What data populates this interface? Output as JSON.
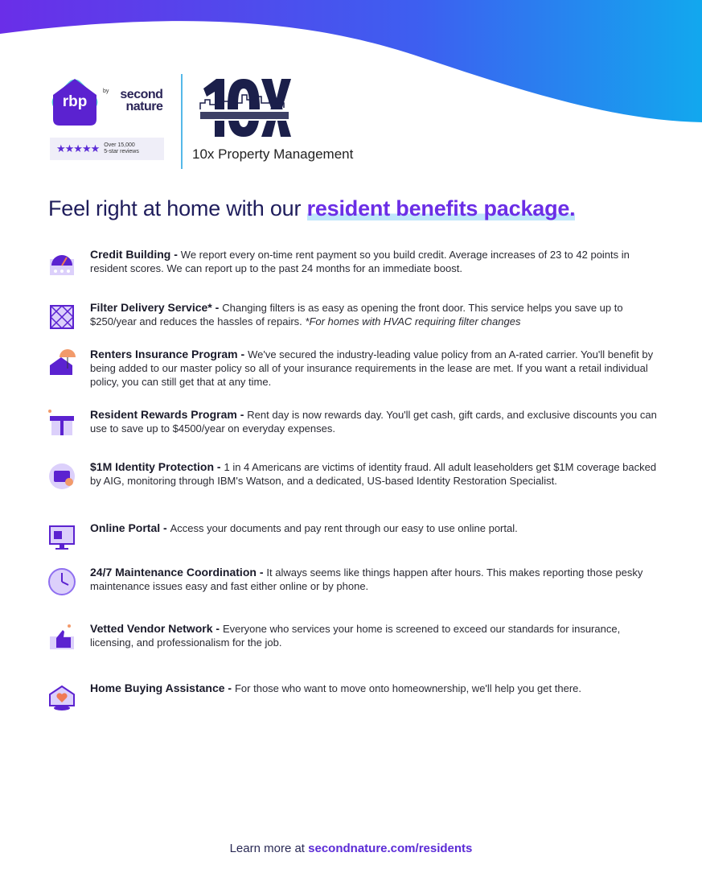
{
  "header": {
    "rbp_logo": "rbp",
    "by": "by",
    "second_nature": "second nature",
    "stars": "★★★★★",
    "reviews_line1": "Over 15,000",
    "reviews_line2": "5-star reviews",
    "partner_logo_text": "10X PROPERTY MANAGEMENT",
    "partner_name": "10x Property Management"
  },
  "headline": {
    "prefix": "Feel right at home with our ",
    "highlight": "resident benefits package."
  },
  "colors": {
    "accent": "#6b2ee6",
    "navy": "#1f1d5c",
    "wave_start": "#6a2ee8",
    "wave_end": "#12a8ee"
  },
  "benefits": [
    {
      "icon": "credit-gauge-icon",
      "title": "Credit Building",
      "desc": "We report every on-time rent payment so you build credit. Average increases of 23 to 42 points in resident scores. We can report up to the past 24 months for an immediate boost."
    },
    {
      "icon": "air-filter-icon",
      "title": "Filter Delivery Service*",
      "desc": "Changing filters is as easy as opening the front door. This service helps you save up to $250/year and reduces the hassles of repairs. ",
      "note": "*For homes with HVAC requiring filter changes"
    },
    {
      "icon": "umbrella-house-icon",
      "title": "Renters Insurance Program",
      "desc": "We've secured the industry-leading value policy from an A-rated carrier. You'll benefit by being added to our master policy so all of your insurance requirements in the lease are met. If you want a retail individual policy, you can still get that at any time."
    },
    {
      "icon": "gift-icon",
      "title": "Resident Rewards Program",
      "desc": "Rent day is now rewards day. You'll get cash, gift cards, and exclusive discounts you can use to save up to $4500/year on everyday expenses."
    },
    {
      "icon": "id-badge-icon",
      "title": "$1M Identity Protection",
      "desc": "1 in 4 Americans are victims of identity fraud. All adult leaseholders get $1M coverage backed by AIG, monitoring through IBM's Watson, and a dedicated, US-based Identity Restoration Specialist."
    },
    {
      "icon": "monitor-icon",
      "title": "Online Portal",
      "desc": "Access your documents and pay rent through our easy to use online portal."
    },
    {
      "icon": "clock-icon",
      "title": "24/7 Maintenance Coordination",
      "desc": "It always seems like things happen after hours. This makes reporting those pesky maintenance issues easy and fast either online or by phone."
    },
    {
      "icon": "thumbs-up-icon",
      "title": "Vetted Vendor Network",
      "desc": "Everyone who services your home is screened to exceed our standards for insurance, licensing, and professionalism for the job."
    },
    {
      "icon": "house-heart-icon",
      "title": "Home Buying Assistance",
      "desc": "For those who want to move onto homeownership, we'll help you get there."
    }
  ],
  "footer": {
    "prefix": "Learn more at ",
    "link": "secondnature.com/residents"
  }
}
